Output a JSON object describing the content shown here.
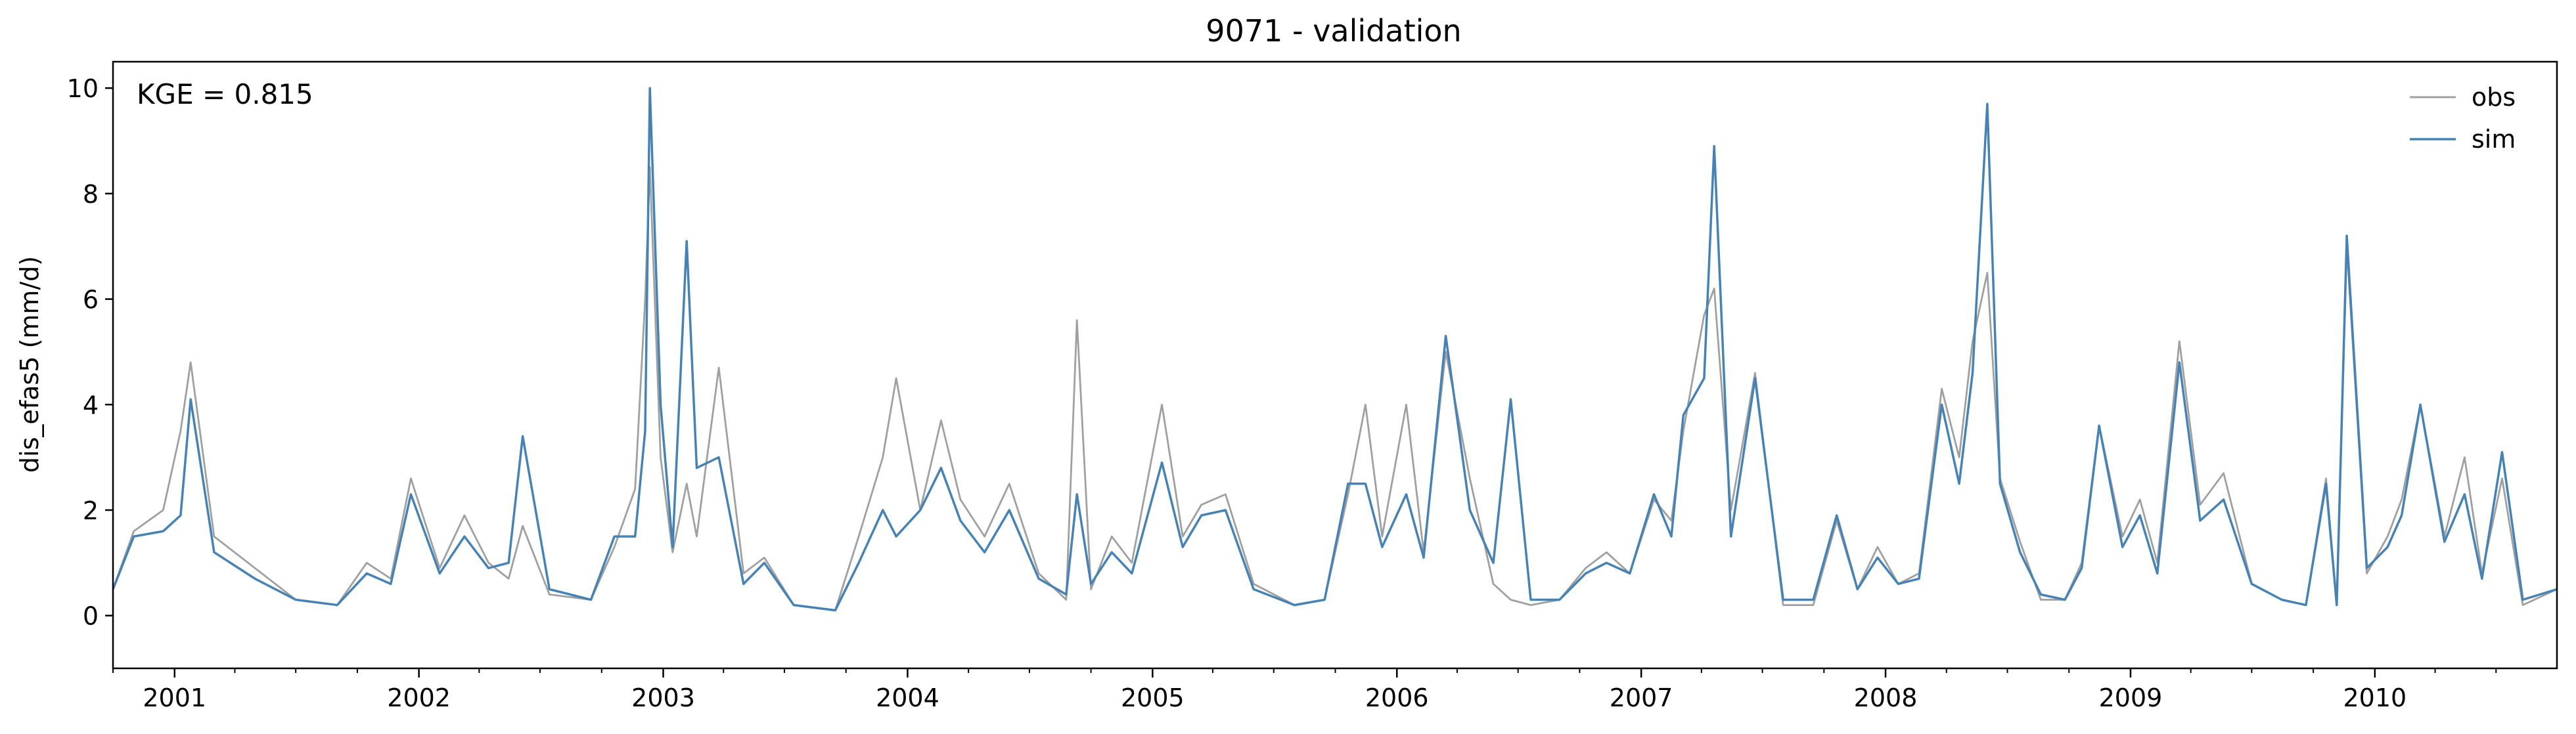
{
  "chart_data": {
    "type": "line",
    "title": "9071 - validation",
    "ylabel": "dis_efas5 (mm/d)",
    "xlabel": "",
    "annotation": "KGE = 0.815",
    "xlim": [
      "2000-10-01",
      "2010-09-30"
    ],
    "ylim": [
      -1,
      10.5
    ],
    "yticks": [
      0,
      2,
      4,
      6,
      8,
      10
    ],
    "xticks": [
      "2001",
      "2002",
      "2003",
      "2004",
      "2005",
      "2006",
      "2007",
      "2008",
      "2009",
      "2010"
    ],
    "grid": false,
    "legend": "top-right",
    "x": [
      "2000-10-01",
      "2000-11-01",
      "2000-12-15",
      "2001-01-10",
      "2001-01-25",
      "2001-03-01",
      "2001-05-01",
      "2001-07-01",
      "2001-09-01",
      "2001-10-15",
      "2001-11-20",
      "2001-12-20",
      "2002-02-01",
      "2002-03-10",
      "2002-04-15",
      "2002-05-15",
      "2002-06-05",
      "2002-07-15",
      "2002-09-15",
      "2002-10-20",
      "2002-11-20",
      "2002-12-05",
      "2002-12-12",
      "2002-12-28",
      "2003-01-15",
      "2003-02-05",
      "2003-02-20",
      "2003-03-25",
      "2003-05-01",
      "2003-06-01",
      "2003-07-15",
      "2003-09-15",
      "2003-10-20",
      "2003-11-25",
      "2003-12-15",
      "2004-01-20",
      "2004-02-20",
      "2004-03-20",
      "2004-04-25",
      "2004-06-01",
      "2004-07-15",
      "2004-08-25",
      "2004-09-10",
      "2004-10-01",
      "2004-11-01",
      "2004-12-01",
      "2005-01-15",
      "2005-02-15",
      "2005-03-15",
      "2005-04-20",
      "2005-06-01",
      "2005-08-01",
      "2005-09-15",
      "2005-10-20",
      "2005-11-15",
      "2005-12-10",
      "2006-01-15",
      "2006-02-10",
      "2006-03-15",
      "2006-04-20",
      "2006-05-25",
      "2006-06-20",
      "2006-07-20",
      "2006-09-01",
      "2006-10-10",
      "2006-11-10",
      "2006-12-15",
      "2007-01-20",
      "2007-02-15",
      "2007-03-05",
      "2007-04-05",
      "2007-04-20",
      "2007-05-15",
      "2007-06-20",
      "2007-08-01",
      "2007-09-15",
      "2007-10-20",
      "2007-11-20",
      "2007-12-20",
      "2008-01-20",
      "2008-02-20",
      "2008-03-25",
      "2008-04-20",
      "2008-05-10",
      "2008-06-01",
      "2008-06-20",
      "2008-07-20",
      "2008-08-20",
      "2008-09-25",
      "2008-10-20",
      "2008-11-15",
      "2008-12-20",
      "2009-01-15",
      "2009-02-10",
      "2009-03-15",
      "2009-04-15",
      "2009-05-20",
      "2009-07-01",
      "2009-08-15",
      "2009-09-20",
      "2009-10-20",
      "2009-11-05",
      "2009-11-20",
      "2009-12-20",
      "2010-01-20",
      "2010-02-10",
      "2010-03-10",
      "2010-04-15",
      "2010-05-15",
      "2010-06-10",
      "2010-07-10",
      "2010-08-10",
      "2010-09-30"
    ],
    "series": [
      {
        "name": "obs",
        "color": "#a0a0a0",
        "values": [
          0.5,
          1.6,
          2.0,
          3.5,
          4.8,
          1.5,
          0.9,
          0.3,
          0.2,
          1.0,
          0.7,
          2.6,
          0.9,
          1.9,
          1.0,
          0.7,
          1.7,
          0.4,
          0.3,
          1.3,
          2.4,
          6.0,
          8.5,
          3.0,
          1.2,
          2.5,
          1.5,
          4.7,
          0.8,
          1.1,
          0.2,
          0.1,
          1.5,
          3.0,
          4.5,
          2.0,
          3.7,
          2.2,
          1.5,
          2.5,
          0.8,
          0.3,
          5.6,
          0.5,
          1.5,
          1.0,
          4.0,
          1.5,
          2.1,
          2.3,
          0.6,
          0.2,
          0.3,
          2.3,
          4.0,
          1.5,
          4.0,
          1.2,
          5.0,
          2.6,
          0.6,
          0.3,
          0.2,
          0.3,
          0.9,
          1.2,
          0.8,
          2.2,
          1.8,
          3.5,
          5.7,
          6.2,
          2.0,
          4.6,
          0.2,
          0.2,
          1.8,
          0.5,
          1.3,
          0.6,
          0.8,
          4.3,
          3.0,
          5.2,
          6.5,
          2.6,
          1.4,
          0.3,
          0.3,
          1.0,
          3.6,
          1.5,
          2.2,
          1.0,
          5.2,
          2.1,
          2.7,
          0.6,
          0.3,
          0.2,
          2.6,
          0.2,
          7.0,
          0.8,
          1.5,
          2.2,
          4.0,
          1.5,
          3.0,
          0.8,
          2.6,
          0.2,
          0.5
        ]
      },
      {
        "name": "sim",
        "color": "#4682b4",
        "values": [
          0.5,
          1.5,
          1.6,
          1.9,
          4.1,
          1.2,
          0.7,
          0.3,
          0.2,
          0.8,
          0.6,
          2.3,
          0.8,
          1.5,
          0.9,
          1.0,
          3.4,
          0.5,
          0.3,
          1.5,
          1.5,
          3.5,
          10.0,
          4.0,
          1.3,
          7.1,
          2.8,
          3.0,
          0.6,
          1.0,
          0.2,
          0.1,
          1.0,
          2.0,
          1.5,
          2.0,
          2.8,
          1.8,
          1.2,
          2.0,
          0.7,
          0.4,
          2.3,
          0.6,
          1.2,
          0.8,
          2.9,
          1.3,
          1.9,
          2.0,
          0.5,
          0.2,
          0.3,
          2.5,
          2.5,
          1.3,
          2.3,
          1.1,
          5.3,
          2.0,
          1.0,
          4.1,
          0.3,
          0.3,
          0.8,
          1.0,
          0.8,
          2.3,
          1.5,
          3.8,
          4.5,
          8.9,
          1.5,
          4.5,
          0.3,
          0.3,
          1.9,
          0.5,
          1.1,
          0.6,
          0.7,
          4.0,
          2.5,
          4.6,
          9.7,
          2.5,
          1.2,
          0.4,
          0.3,
          0.9,
          3.6,
          1.3,
          1.9,
          0.8,
          4.8,
          1.8,
          2.2,
          0.6,
          0.3,
          0.2,
          2.5,
          0.2,
          7.2,
          0.9,
          1.3,
          1.9,
          4.0,
          1.4,
          2.3,
          0.7,
          3.1,
          0.3,
          0.5
        ]
      }
    ]
  }
}
